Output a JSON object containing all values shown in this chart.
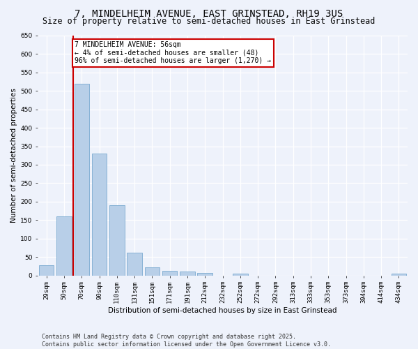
{
  "title": "7, MINDELHEIM AVENUE, EAST GRINSTEAD, RH19 3US",
  "subtitle": "Size of property relative to semi-detached houses in East Grinstead",
  "xlabel": "Distribution of semi-detached houses by size in East Grinstead",
  "ylabel": "Number of semi-detached properties",
  "categories": [
    "29sqm",
    "50sqm",
    "70sqm",
    "90sqm",
    "110sqm",
    "131sqm",
    "151sqm",
    "171sqm",
    "191sqm",
    "212sqm",
    "232sqm",
    "252sqm",
    "272sqm",
    "292sqm",
    "313sqm",
    "333sqm",
    "353sqm",
    "373sqm",
    "394sqm",
    "414sqm",
    "434sqm"
  ],
  "values": [
    27,
    160,
    520,
    330,
    190,
    62,
    22,
    13,
    10,
    7,
    0,
    5,
    0,
    0,
    0,
    0,
    0,
    0,
    0,
    0,
    5
  ],
  "bar_color": "#b8cfe8",
  "bar_edge_color": "#7aaad0",
  "vline_color": "#cc0000",
  "annotation_text": "7 MINDELHEIM AVENUE: 56sqm\n← 4% of semi-detached houses are smaller (48)\n96% of semi-detached houses are larger (1,270) →",
  "annotation_box_color": "white",
  "annotation_box_edge_color": "#cc0000",
  "ylim": [
    0,
    650
  ],
  "yticks": [
    0,
    50,
    100,
    150,
    200,
    250,
    300,
    350,
    400,
    450,
    500,
    550,
    600,
    650
  ],
  "footer_text": "Contains HM Land Registry data © Crown copyright and database right 2025.\nContains public sector information licensed under the Open Government Licence v3.0.",
  "background_color": "#eef2fb",
  "grid_color": "#ffffff",
  "title_fontsize": 10,
  "subtitle_fontsize": 8.5,
  "tick_fontsize": 6.5,
  "ylabel_fontsize": 7.5,
  "xlabel_fontsize": 7.5,
  "annotation_fontsize": 7,
  "footer_fontsize": 6
}
